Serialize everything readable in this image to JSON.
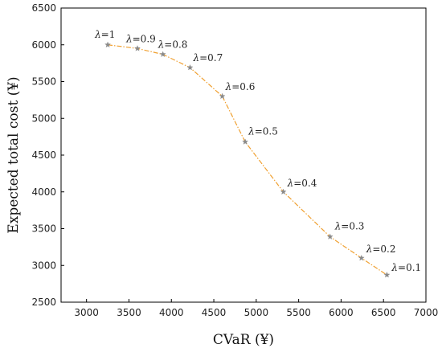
{
  "chart_data": {
    "type": "line",
    "xlabel": "CVaR (¥)",
    "ylabel": "Expected total cost (¥)",
    "xlim": [
      2700,
      7000
    ],
    "ylim": [
      2500,
      6500
    ],
    "xticks": [
      3000,
      3500,
      4000,
      4500,
      5000,
      5500,
      6000,
      6500,
      7000
    ],
    "yticks": [
      2500,
      3000,
      3500,
      4000,
      4500,
      5000,
      5500,
      6000,
      6500
    ],
    "grid": false,
    "line_color": "#f0a030",
    "marker_color": "#8a8a8a",
    "marker": "star",
    "line_style": "dash-dot",
    "series": [
      {
        "points": [
          {
            "x": 3250,
            "y": 6000,
            "lambda_symbol": "λ",
            "label": "=1"
          },
          {
            "x": 3600,
            "y": 5950,
            "lambda_symbol": "λ",
            "label": "=0.9"
          },
          {
            "x": 3900,
            "y": 5870,
            "lambda_symbol": "λ",
            "label": "=0.8"
          },
          {
            "x": 4220,
            "y": 5690,
            "lambda_symbol": "λ",
            "label": "=0.7"
          },
          {
            "x": 4600,
            "y": 5300,
            "lambda_symbol": "λ",
            "label": "=0.6"
          },
          {
            "x": 4870,
            "y": 4680,
            "lambda_symbol": "λ",
            "label": "=0.5"
          },
          {
            "x": 5320,
            "y": 4000,
            "lambda_symbol": "λ",
            "label": "=0.4"
          },
          {
            "x": 5870,
            "y": 3390,
            "lambda_symbol": "λ",
            "label": "=0.3"
          },
          {
            "x": 6240,
            "y": 3100,
            "lambda_symbol": "λ",
            "label": "=0.2"
          },
          {
            "x": 6540,
            "y": 2870,
            "lambda_symbol": "λ",
            "label": "=0.1"
          }
        ]
      }
    ]
  }
}
